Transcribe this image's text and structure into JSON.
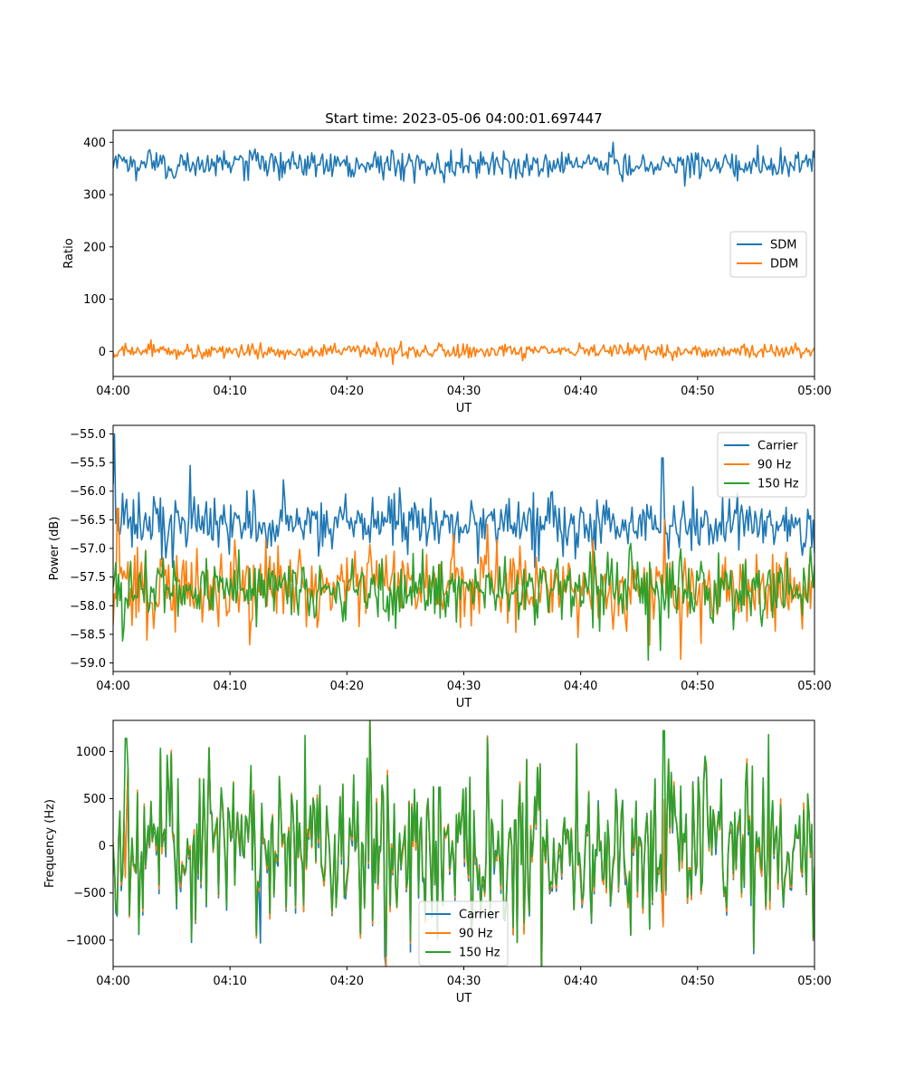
{
  "figure": {
    "title": "Start time: 2023-05-06 04:00:01.697447"
  },
  "chart_data": [
    {
      "type": "line",
      "xlabel": "UT",
      "ylabel": "Ratio",
      "xlim": [
        "04:00",
        "05:00"
      ],
      "ylim": [
        -48,
        423
      ],
      "xticks": [
        "04:00",
        "04:10",
        "04:20",
        "04:30",
        "04:40",
        "04:50",
        "05:00"
      ],
      "yticks": [
        0,
        100,
        200,
        300,
        400
      ],
      "ytick_labels": [
        "0",
        "100",
        "200",
        "300",
        "400"
      ],
      "legend_position": "center-right",
      "series": [
        {
          "name": "SDM",
          "color": "#1f77b4",
          "mean": 358,
          "amp": 16,
          "spikes": [
            {
              "t": 42.8,
              "v": 400
            },
            {
              "t": 25.8,
              "v": 322
            }
          ]
        },
        {
          "name": "DDM",
          "color": "#ff7f0e",
          "mean": 0,
          "amp": 8,
          "spikes": [
            {
              "t": 3.2,
              "v": 22
            },
            {
              "t": 23.9,
              "v": -25
            }
          ]
        }
      ]
    },
    {
      "type": "line",
      "xlabel": "UT",
      "ylabel": "Power (dB)",
      "xlim": [
        "04:00",
        "05:00"
      ],
      "ylim": [
        -59.15,
        -54.85
      ],
      "xticks": [
        "04:00",
        "04:10",
        "04:20",
        "04:30",
        "04:40",
        "04:50",
        "05:00"
      ],
      "yticks": [
        -55.0,
        -55.5,
        -56.0,
        -56.5,
        -57.0,
        -57.5,
        -58.0,
        -58.5,
        -59.0
      ],
      "ytick_labels": [
        "−55.0",
        "−55.5",
        "−56.0",
        "−56.5",
        "−57.0",
        "−57.5",
        "−58.0",
        "−58.5",
        "−59.0"
      ],
      "legend_position": "top-right",
      "series": [
        {
          "name": "Carrier",
          "color": "#1f77b4",
          "mean": -56.55,
          "amp": 0.3,
          "spikes": [
            {
              "t": 0.1,
              "v": -55.0
            },
            {
              "t": 6.6,
              "v": -55.55
            },
            {
              "t": 47.0,
              "v": -55.42
            }
          ]
        },
        {
          "name": "90 Hz",
          "color": "#ff7f0e",
          "mean": -57.65,
          "amp": 0.4,
          "spikes": [
            {
              "t": 0.4,
              "v": -56.3
            },
            {
              "t": 47.2,
              "v": -56.5
            }
          ]
        },
        {
          "name": "150 Hz",
          "color": "#2ca02c",
          "mean": -57.7,
          "amp": 0.35,
          "spikes": [
            {
              "t": 45.8,
              "v": -58.95
            },
            {
              "t": 46.8,
              "v": -58.78
            }
          ]
        }
      ]
    },
    {
      "type": "line",
      "xlabel": "UT",
      "ylabel": "Frequency (Hz)",
      "xlim": [
        "04:00",
        "05:00"
      ],
      "ylim": [
        -1280,
        1330
      ],
      "xticks": [
        "04:00",
        "04:10",
        "04:20",
        "04:30",
        "04:40",
        "04:50",
        "05:00"
      ],
      "yticks": [
        -1000,
        -500,
        0,
        500,
        1000
      ],
      "ytick_labels": [
        "−1000",
        "−500",
        "0",
        "500",
        "1000"
      ],
      "legend_position": "lower-center",
      "series": [
        {
          "name": "Carrier",
          "color": "#1f77b4",
          "mean": -30,
          "amp": 480,
          "spikes": [
            {
              "t": 23.2,
              "v": -1170
            },
            {
              "t": 12.6,
              "v": -1030
            }
          ]
        },
        {
          "name": "90 Hz",
          "color": "#ff7f0e",
          "mean": -10,
          "amp": 480,
          "spikes": []
        },
        {
          "name": "150 Hz",
          "color": "#2ca02c",
          "mean": 10,
          "amp": 480,
          "spikes": [
            {
              "t": 47.1,
              "v": 1220
            },
            {
              "t": 1.1,
              "v": 1140
            },
            {
              "t": 16.4,
              "v": 1170
            },
            {
              "t": 56.1,
              "v": 1180
            }
          ]
        }
      ]
    }
  ]
}
